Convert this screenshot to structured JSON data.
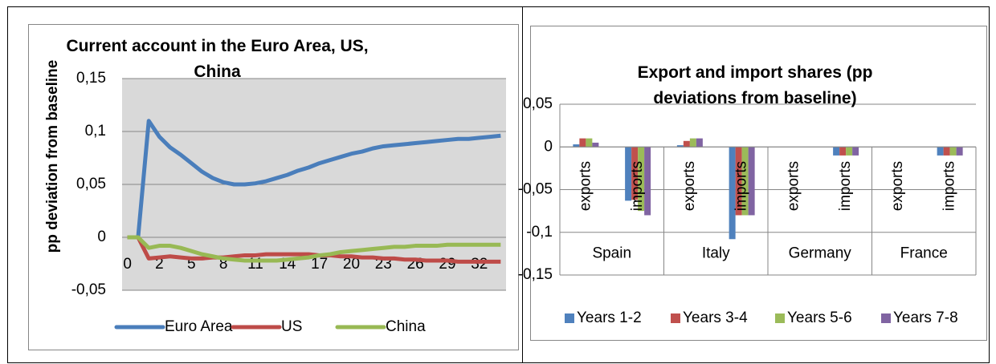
{
  "chart_data": [
    {
      "type": "line",
      "title": "Current account in the Euro Area, US, China",
      "y_label": "pp  deviation from baseline",
      "categories": [
        "0",
        null,
        null,
        "2",
        null,
        null,
        "5",
        null,
        null,
        "8",
        null,
        null,
        "11",
        null,
        null,
        "14",
        null,
        null,
        "17",
        null,
        null,
        "20",
        null,
        null,
        "23",
        null,
        null,
        "26",
        null,
        null,
        "29",
        null,
        null,
        "32",
        null,
        null
      ],
      "series": [
        {
          "name": "Euro Area",
          "color": "#4a7ebb",
          "values": [
            0,
            0,
            0.11,
            0.095,
            0.085,
            0.078,
            0.07,
            0.062,
            0.056,
            0.052,
            0.05,
            0.05,
            0.051,
            0.053,
            0.056,
            0.059,
            0.063,
            0.066,
            0.07,
            0.073,
            0.076,
            0.079,
            0.081,
            0.084,
            0.086,
            0.087,
            0.088,
            0.089,
            0.09,
            0.091,
            0.092,
            0.093,
            0.093,
            0.094,
            0.095,
            0.096
          ]
        },
        {
          "name": "US",
          "color": "#be4b48",
          "values": [
            0,
            0,
            -0.02,
            -0.019,
            -0.018,
            -0.019,
            -0.02,
            -0.02,
            -0.019,
            -0.019,
            -0.018,
            -0.017,
            -0.017,
            -0.016,
            -0.016,
            -0.016,
            -0.016,
            -0.016,
            -0.017,
            -0.017,
            -0.018,
            -0.018,
            -0.019,
            -0.019,
            -0.02,
            -0.02,
            -0.021,
            -0.021,
            -0.022,
            -0.022,
            -0.022,
            -0.023,
            -0.023,
            -0.023,
            -0.023,
            -0.023
          ]
        },
        {
          "name": "China",
          "color": "#98b954",
          "values": [
            0,
            0,
            -0.01,
            -0.008,
            -0.008,
            -0.01,
            -0.013,
            -0.016,
            -0.018,
            -0.02,
            -0.021,
            -0.022,
            -0.022,
            -0.022,
            -0.022,
            -0.021,
            -0.02,
            -0.019,
            -0.017,
            -0.016,
            -0.014,
            -0.013,
            -0.012,
            -0.011,
            -0.01,
            -0.009,
            -0.009,
            -0.008,
            -0.008,
            -0.008,
            -0.007,
            -0.007,
            -0.007,
            -0.007,
            -0.007,
            -0.007
          ]
        }
      ],
      "ylim": [
        -0.05,
        0.15
      ],
      "yticks": [
        {
          "value": -0.05,
          "label": "-0,05"
        },
        0,
        {
          "value": 0.05,
          "label": "0,05"
        },
        {
          "value": 0.1,
          "label": "0,1"
        },
        {
          "value": 0.15,
          "label": "0,15"
        }
      ],
      "grid": true,
      "plot_background": "#d9d9d9",
      "legend": "bottom"
    },
    {
      "type": "bar",
      "title": "Export and import shares (pp deviations from baseline)",
      "categories": [
        "exports",
        "imports",
        "exports",
        "imports",
        "exports",
        "imports",
        "exports",
        "imports"
      ],
      "category_groups": [
        "Spain",
        "Italy",
        "Germany",
        "France"
      ],
      "series": [
        {
          "name": "Years 1-2",
          "color": "#4f81bd",
          "values": [
            0.003,
            -0.063,
            0.002,
            -0.108,
            0,
            -0.01,
            0,
            -0.01
          ]
        },
        {
          "name": "Years 3-4",
          "color": "#c0504d",
          "values": [
            0.01,
            -0.062,
            0.007,
            -0.08,
            0,
            -0.01,
            0,
            -0.01
          ]
        },
        {
          "name": "Years 5-6",
          "color": "#9bbb59",
          "values": [
            0.01,
            -0.075,
            0.01,
            -0.08,
            0,
            -0.01,
            0,
            -0.01
          ]
        },
        {
          "name": "Years 7-8",
          "color": "#8064a2",
          "values": [
            0.005,
            -0.08,
            0.01,
            -0.08,
            0,
            -0.01,
            0,
            -0.01
          ]
        }
      ],
      "ylim": [
        -0.15,
        0.05
      ],
      "yticks": [
        {
          "value": -0.15,
          "label": "-0,15"
        },
        {
          "value": -0.1,
          "label": "-0,1"
        },
        {
          "value": -0.05,
          "label": "-0,05"
        },
        0,
        {
          "value": 0.05,
          "label": "0,05"
        }
      ],
      "grid": true,
      "legend": "bottom"
    }
  ]
}
